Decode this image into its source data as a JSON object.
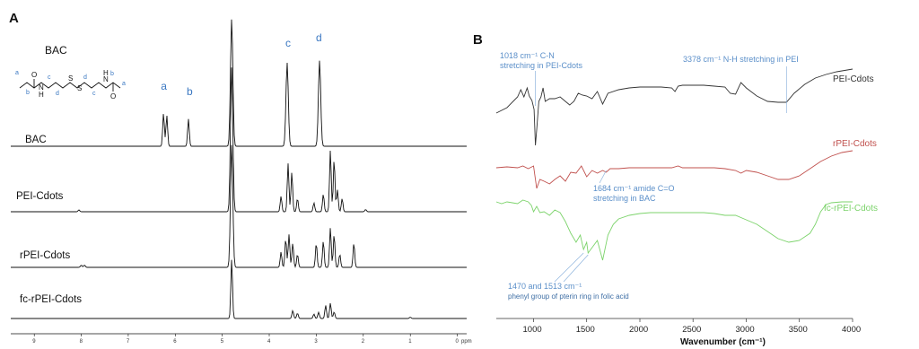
{
  "chart_data": [
    {
      "type": "line",
      "panel": "A",
      "structure_label": "BAC",
      "structure_positions": [
        "a",
        "b",
        "c",
        "d",
        "d",
        "c",
        "b",
        "a"
      ],
      "structure_atoms": [
        "O",
        "N",
        "H",
        "S",
        "S",
        "N",
        "H",
        "O"
      ],
      "peak_labels": [
        {
          "label": "a",
          "ppm": 6.25
        },
        {
          "label": "b",
          "ppm": 5.7
        },
        {
          "label": "c",
          "ppm": 3.6
        },
        {
          "label": "d",
          "ppm": 2.95
        }
      ],
      "x_ticks": [
        9,
        8,
        7,
        6,
        5,
        4,
        3,
        2,
        1,
        0
      ],
      "x_unit": "ppm",
      "xlim": [
        9.5,
        -0.2
      ],
      "x_reversed": true,
      "series": [
        {
          "name": "BAC",
          "peaks": [
            {
              "ppm": 6.25,
              "h": 0.75
            },
            {
              "ppm": 6.18,
              "h": 0.7
            },
            {
              "ppm": 5.72,
              "h": 0.62
            },
            {
              "ppm": 4.8,
              "h": 2.9
            },
            {
              "ppm": 3.62,
              "h": 1.9
            },
            {
              "ppm": 2.93,
              "h": 1.95
            }
          ]
        },
        {
          "name": "PEI-Cdots",
          "peaks": [
            {
              "ppm": 8.05,
              "h": 0.04
            },
            {
              "ppm": 4.8,
              "h": 3.3
            },
            {
              "ppm": 3.75,
              "h": 0.35
            },
            {
              "ppm": 3.6,
              "h": 1.1
            },
            {
              "ppm": 3.52,
              "h": 0.9
            },
            {
              "ppm": 3.4,
              "h": 0.3
            },
            {
              "ppm": 3.05,
              "h": 0.2
            },
            {
              "ppm": 2.85,
              "h": 0.4
            },
            {
              "ppm": 2.7,
              "h": 1.4
            },
            {
              "ppm": 2.62,
              "h": 1.2
            },
            {
              "ppm": 2.55,
              "h": 0.5
            },
            {
              "ppm": 2.45,
              "h": 0.3
            },
            {
              "ppm": 1.95,
              "h": 0.05
            }
          ]
        },
        {
          "name": "rPEI-Cdots",
          "peaks": [
            {
              "ppm": 8.0,
              "h": 0.05
            },
            {
              "ppm": 7.93,
              "h": 0.05
            },
            {
              "ppm": 4.8,
              "h": 2.8
            },
            {
              "ppm": 3.75,
              "h": 0.35
            },
            {
              "ppm": 3.65,
              "h": 0.65
            },
            {
              "ppm": 3.58,
              "h": 0.75
            },
            {
              "ppm": 3.5,
              "h": 0.55
            },
            {
              "ppm": 3.4,
              "h": 0.3
            },
            {
              "ppm": 3.0,
              "h": 0.55
            },
            {
              "ppm": 2.85,
              "h": 0.6
            },
            {
              "ppm": 2.7,
              "h": 0.9
            },
            {
              "ppm": 2.62,
              "h": 0.75
            },
            {
              "ppm": 2.5,
              "h": 0.3
            },
            {
              "ppm": 2.2,
              "h": 0.55
            }
          ]
        },
        {
          "name": "fc-rPEI-Cdots",
          "peaks": [
            {
              "ppm": 4.8,
              "h": 1.35
            },
            {
              "ppm": 3.5,
              "h": 0.18
            },
            {
              "ppm": 3.4,
              "h": 0.12
            },
            {
              "ppm": 3.05,
              "h": 0.1
            },
            {
              "ppm": 2.95,
              "h": 0.14
            },
            {
              "ppm": 2.8,
              "h": 0.3
            },
            {
              "ppm": 2.7,
              "h": 0.35
            },
            {
              "ppm": 2.62,
              "h": 0.15
            },
            {
              "ppm": 1.0,
              "h": 0.03
            }
          ]
        }
      ]
    },
    {
      "type": "line",
      "panel": "B",
      "xlabel": "Wavenumber (cm⁻¹)",
      "x_ticks": [
        1000,
        1500,
        2000,
        2500,
        3000,
        3500,
        4000
      ],
      "xlim": [
        650,
        4000
      ],
      "series": [
        {
          "name": "PEI-Cdots",
          "color": "#333333",
          "x": [
            650,
            750,
            850,
            880,
            910,
            940,
            960,
            985,
            1005,
            1018,
            1030,
            1050,
            1070,
            1090,
            1110,
            1150,
            1200,
            1250,
            1300,
            1340,
            1380,
            1420,
            1460,
            1500,
            1550,
            1600,
            1650,
            1700,
            1800,
            1900,
            2000,
            2100,
            2200,
            2300,
            2330,
            2360,
            2400,
            2500,
            2600,
            2700,
            2800,
            2850,
            2900,
            2950,
            3000,
            3100,
            3200,
            3300,
            3378,
            3450,
            3550,
            3650,
            3750,
            3850,
            3950,
            4000
          ],
          "y": [
            76,
            70,
            58,
            50,
            58,
            48,
            57,
            62,
            72,
            112,
            95,
            63,
            58,
            48,
            63,
            60,
            60,
            58,
            63,
            67,
            63,
            54,
            56,
            57,
            60,
            52,
            66,
            54,
            50,
            48,
            47,
            47,
            47,
            48,
            52,
            46,
            45,
            45,
            45,
            46,
            47,
            54,
            55,
            42,
            48,
            57,
            63,
            64,
            64,
            54,
            44,
            37,
            33,
            30,
            28,
            27
          ]
        },
        {
          "name": "rPEI-Cdots",
          "color": "#c0504d",
          "x": [
            650,
            750,
            850,
            900,
            950,
            1000,
            1030,
            1060,
            1100,
            1150,
            1200,
            1250,
            1300,
            1350,
            1400,
            1450,
            1500,
            1550,
            1600,
            1650,
            1684,
            1720,
            1800,
            1900,
            2000,
            2100,
            2200,
            2300,
            2360,
            2400,
            2500,
            2600,
            2700,
            2800,
            2900,
            2950,
            3000,
            3100,
            3200,
            3300,
            3400,
            3500,
            3600,
            3700,
            3800,
            3900,
            4000
          ],
          "y": [
            57,
            56,
            57,
            55,
            58,
            55,
            80,
            70,
            72,
            75,
            70,
            66,
            72,
            62,
            63,
            55,
            67,
            60,
            63,
            60,
            62,
            58,
            58,
            57,
            57,
            57,
            57,
            57,
            55,
            57,
            57,
            57,
            57,
            58,
            60,
            63,
            60,
            62,
            66,
            70,
            70,
            66,
            58,
            50,
            44,
            40,
            38
          ]
        },
        {
          "name": "fc-rPEI-Cdots",
          "color": "#7cd36b",
          "x": [
            650,
            700,
            750,
            800,
            850,
            900,
            950,
            980,
            1000,
            1030,
            1060,
            1100,
            1150,
            1200,
            1250,
            1300,
            1350,
            1400,
            1440,
            1470,
            1500,
            1513,
            1550,
            1600,
            1650,
            1700,
            1750,
            1800,
            1900,
            2000,
            2100,
            2200,
            2300,
            2400,
            2500,
            2600,
            2700,
            2800,
            2900,
            3000,
            3100,
            3200,
            3300,
            3400,
            3500,
            3600,
            3650,
            3700,
            3750,
            3800,
            3900,
            4000
          ],
          "y": [
            25,
            27,
            25,
            26,
            27,
            23,
            25,
            29,
            36,
            30,
            37,
            36,
            40,
            34,
            37,
            47,
            60,
            70,
            62,
            78,
            70,
            82,
            76,
            68,
            90,
            62,
            50,
            44,
            40,
            38,
            37,
            37,
            37,
            37,
            37,
            37,
            38,
            40,
            40,
            45,
            50,
            58,
            66,
            70,
            68,
            60,
            50,
            36,
            28,
            26,
            25,
            25
          ]
        }
      ],
      "annotations": [
        {
          "lines": [
            "1018 cm⁻¹ C-N",
            "stretching in PEI-Cdots"
          ],
          "x": 1018
        },
        {
          "lines": [
            "3378 cm⁻¹ N-H stretching in PEI"
          ],
          "x": 3378
        },
        {
          "lines": [
            "1684 cm⁻¹ amide C=O",
            "stretching in BAC"
          ],
          "x": 1684
        },
        {
          "lines": [
            "1470 and 1513 cm⁻¹"
          ],
          "x": [
            1470,
            1513
          ]
        },
        {
          "lines": [
            "phenyl group of pterin ring in folic acid"
          ]
        }
      ]
    }
  ]
}
